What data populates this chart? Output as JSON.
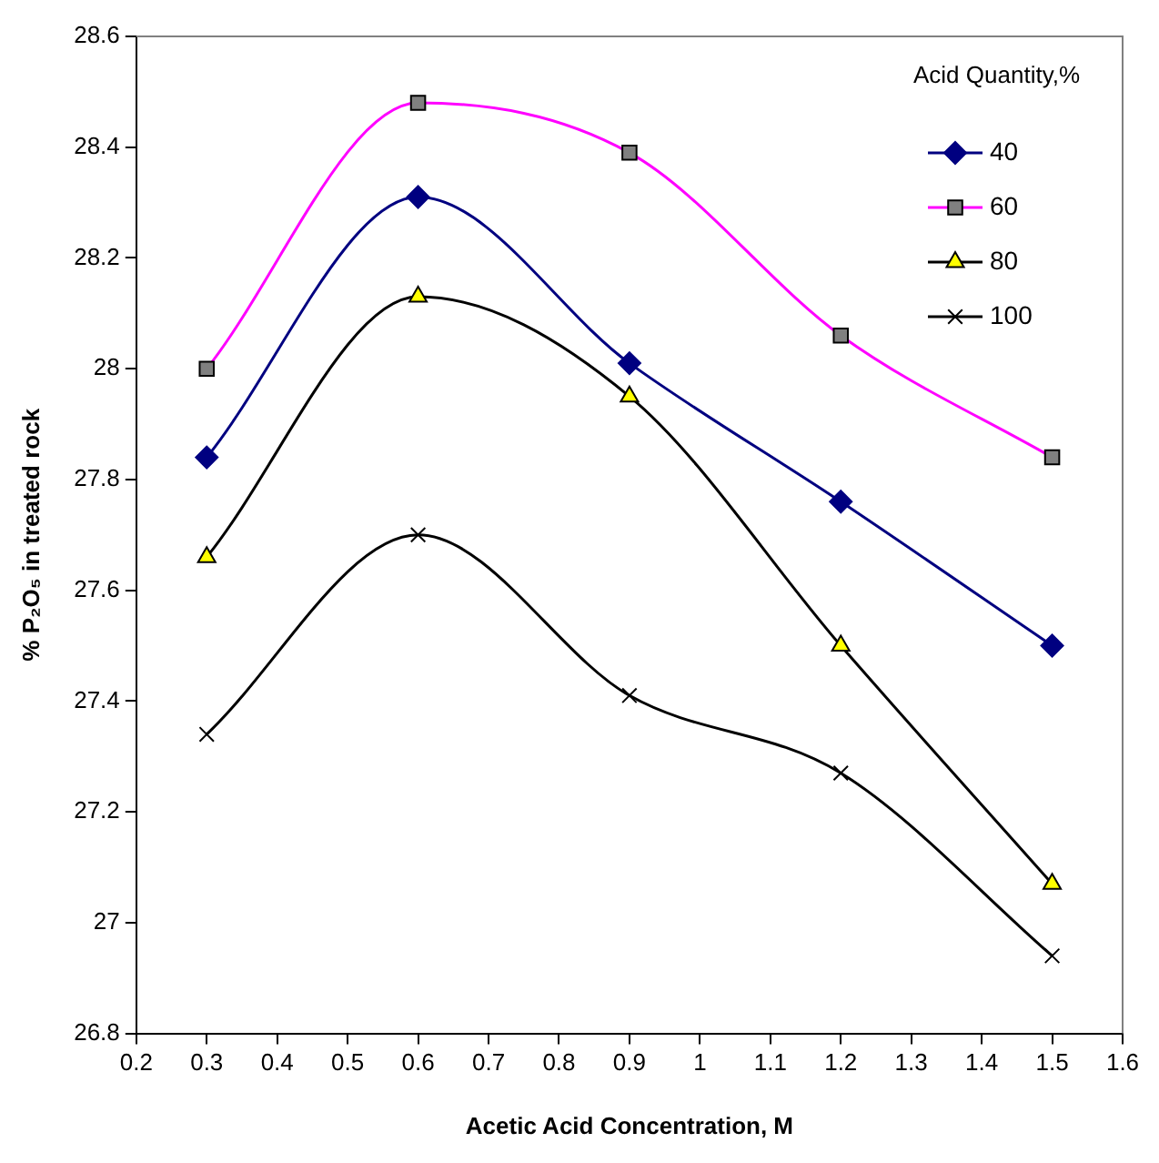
{
  "chart_data": {
    "type": "line",
    "xlabel": "Acetic Acid Concentration, M",
    "ylabel": "% P₂O₅ in treated rock",
    "legend_title": "Acid Quantity,%",
    "legend": "top right",
    "grid": false,
    "x": [
      0.3,
      0.6,
      0.9,
      1.2,
      1.5
    ],
    "xlim": [
      0.2,
      1.6
    ],
    "xticks": [
      0.2,
      0.3,
      0.4,
      0.5,
      0.6,
      0.7,
      0.8,
      0.9,
      1,
      1.1,
      1.2,
      1.3,
      1.4,
      1.5,
      1.6
    ],
    "ylim": [
      26.8,
      28.6
    ],
    "yticks": [
      26.8,
      27,
      27.2,
      27.4,
      27.6,
      27.8,
      28,
      28.2,
      28.4,
      28.6
    ],
    "series": [
      {
        "name": "40",
        "color": "#000080",
        "marker": "diamond",
        "colors": [
          "#000080",
          "#000080",
          "#000080",
          "#000080",
          "#000080"
        ],
        "values": [
          27.84,
          28.31,
          28.01,
          27.76,
          27.5
        ]
      },
      {
        "name": "60",
        "color": "#ff00ff",
        "marker": "square",
        "colors": [
          "#808080",
          "#808080",
          "#808080",
          "#808080",
          "#808080"
        ],
        "values": [
          28.0,
          28.48,
          28.39,
          28.06,
          27.84
        ]
      },
      {
        "name": "80",
        "color": "#000000",
        "marker": "triangle",
        "colors": [
          "#ffff00",
          "#ffff00",
          "#ffff00",
          "#ffff00",
          "#ffff00"
        ],
        "values": [
          27.66,
          28.13,
          27.95,
          27.5,
          27.07
        ]
      },
      {
        "name": "100",
        "color": "#000000",
        "marker": "cross",
        "colors": [
          "#000000",
          "#000000",
          "#000000",
          "#000000",
          "#000000"
        ],
        "values": [
          27.34,
          27.7,
          27.41,
          27.27,
          26.94
        ]
      }
    ]
  }
}
